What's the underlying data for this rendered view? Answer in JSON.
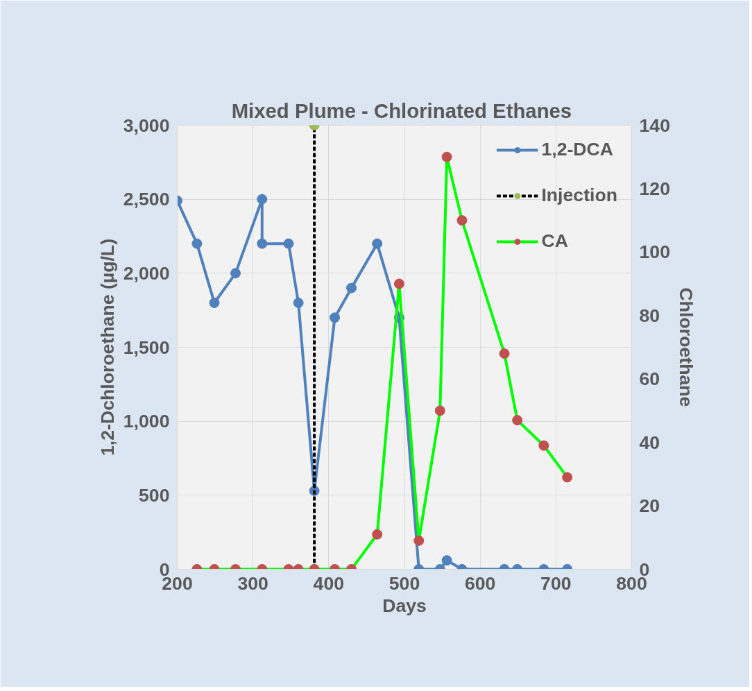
{
  "chart_data": {
    "type": "line",
    "title": "Mixed  Plume - Chlorinated Ethanes",
    "xlabel": "Days",
    "ylabel": "1,2-Dchloroethane (µg/L)",
    "y2label": "Chloroethane",
    "xlim": [
      200,
      800
    ],
    "xticks": [
      200,
      300,
      400,
      500,
      600,
      700,
      800
    ],
    "ylim": [
      0,
      3000
    ],
    "yticks": [
      {
        "value": 0,
        "label": "0"
      },
      {
        "value": 500,
        "label": "500"
      },
      {
        "value": 1000,
        "label": "1,000"
      },
      {
        "value": 1500,
        "label": "1,500"
      },
      {
        "value": 2000,
        "label": "2,000"
      },
      {
        "value": 2500,
        "label": "2,500"
      },
      {
        "value": 3000,
        "label": "3,000"
      }
    ],
    "y2lim": [
      0,
      140
    ],
    "y2ticks": [
      0,
      20,
      40,
      60,
      80,
      100,
      120,
      140
    ],
    "grid": true,
    "legend": "top right",
    "marker": "circle",
    "series": [
      {
        "name": "1,2-DCA",
        "color": "#4f81bd",
        "x": [
          200,
          226,
          249,
          277,
          312,
          312,
          347,
          360,
          381,
          408,
          430,
          464,
          493,
          519,
          547,
          556,
          576,
          632,
          649,
          684,
          715
        ],
        "values": [
          2490,
          2200,
          1800,
          2000,
          2500,
          2200,
          2200,
          1800,
          530,
          1700,
          1900,
          2200,
          1700,
          0,
          0,
          60,
          0,
          0,
          0,
          0,
          0
        ]
      },
      {
        "name": "Injection",
        "color": "#000000",
        "colors": [
          "#9bbb59",
          "#9bbb59"
        ],
        "line_style": "dashed",
        "x": [
          381,
          381
        ],
        "values": [
          0,
          3000
        ]
      },
      {
        "name": "CA",
        "color": "#00ff00",
        "colors": [
          "#c0504d",
          "#c0504d",
          "#c0504d",
          "#c0504d",
          "#c0504d",
          "#c0504d",
          "#c0504d",
          "#c0504d",
          "#c0504d",
          "#c0504d",
          "#c0504d",
          "#c0504d",
          "#c0504d",
          "#c0504d",
          "#c0504d",
          "#c0504d",
          "#c0504d",
          "#c0504d",
          "#c0504d"
        ],
        "axis": "y2",
        "x": [
          226,
          249,
          277,
          312,
          347,
          360,
          381,
          408,
          430,
          464,
          493,
          519,
          547,
          556,
          576,
          632,
          649,
          684,
          715
        ],
        "values": [
          0,
          0,
          0,
          0,
          0,
          0,
          0,
          0,
          0,
          11,
          90,
          9,
          50,
          130,
          110,
          68,
          47,
          39,
          29
        ]
      }
    ]
  }
}
